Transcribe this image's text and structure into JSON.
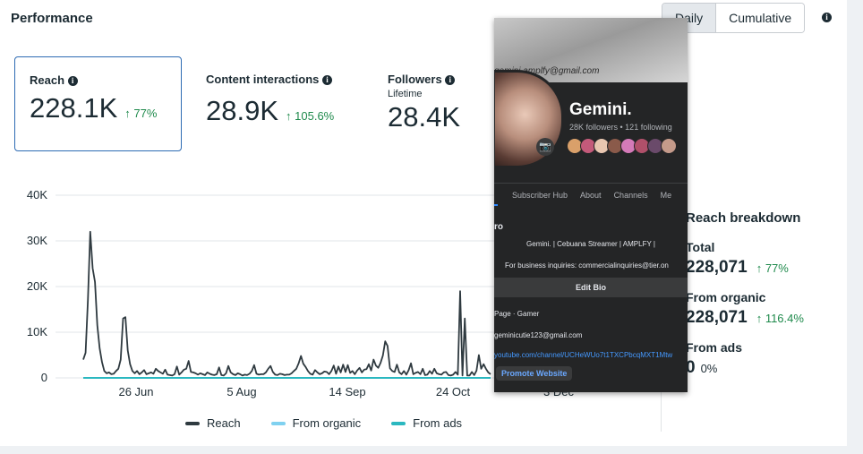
{
  "header": {
    "title": "Performance",
    "toggle": {
      "daily": "Daily",
      "cumulative": "Cumulative"
    }
  },
  "metrics": {
    "reach": {
      "label": "Reach",
      "value": "228.1K",
      "change": "77%"
    },
    "content_interactions": {
      "label": "Content interactions",
      "value": "28.9K",
      "change": "105.6%"
    },
    "followers": {
      "label": "Followers",
      "sublabel": "Lifetime",
      "value": "28.4K"
    }
  },
  "colors": {
    "accent": "#2d6bb3",
    "positive": "#1f8a4c",
    "reach": "#2f3a40",
    "organic": "#7fd1f0",
    "ads": "#2bb8c0"
  },
  "chart_data": {
    "type": "line",
    "title": "",
    "xlabel": "",
    "ylabel": "",
    "x_tick_labels": [
      "26 Jun",
      "5 Aug",
      "14 Sep",
      "24 Oct",
      "3 Dec"
    ],
    "y_tick_labels": [
      "40K",
      "30K",
      "20K",
      "10K",
      "0"
    ],
    "ylim": [
      0,
      40000
    ],
    "grid": true,
    "legend_position": "bottom",
    "series": [
      {
        "name": "Reach",
        "values": [
          4000,
          5500,
          17000,
          32000,
          24000,
          21000,
          11500,
          6500,
          3500,
          1500,
          1000,
          1200,
          800,
          900,
          1500,
          2000,
          4000,
          13000,
          13300,
          6000,
          3000,
          1500,
          1000,
          1500,
          800,
          1200,
          1700,
          800,
          1000,
          1200,
          900,
          2000,
          1500,
          1200,
          900,
          1800,
          700,
          600,
          500,
          800,
          2500,
          700,
          1200,
          1800,
          2000,
          3700,
          1300,
          1200,
          1000,
          700,
          1000,
          800,
          600,
          1200,
          900,
          700,
          600,
          800,
          2300,
          600,
          500,
          1000,
          2600,
          1200,
          800,
          600,
          1000,
          800,
          500,
          700,
          600,
          900,
          1500,
          2800,
          900,
          700,
          800,
          800,
          1200,
          2000,
          2600,
          1300,
          700,
          600,
          900,
          800,
          600,
          700,
          700,
          1000,
          1500,
          2000,
          3200,
          4800,
          3100,
          2400,
          1500,
          900,
          700,
          1700,
          1200,
          800,
          1000,
          1400,
          1300,
          800,
          1500,
          2700,
          900,
          2500,
          1200,
          2900,
          1300,
          2800,
          1100,
          1500,
          800,
          1600,
          2200,
          1200,
          1800,
          1900,
          3000,
          1600,
          4000,
          2700,
          2200,
          3300,
          4900,
          8000,
          7000,
          2100,
          1500,
          1300,
          2900,
          1200,
          800,
          1500,
          700,
          1700,
          3200,
          800,
          1100,
          1300,
          800,
          2000,
          600,
          700,
          1500,
          900,
          2000,
          1000,
          800,
          700,
          1200,
          1300,
          600,
          500,
          700,
          1300,
          700,
          19000,
          500,
          13000,
          500,
          500,
          1300,
          600,
          1600,
          5000,
          2000,
          3000,
          2000,
          1200,
          800
        ]
      },
      {
        "name": "From organic",
        "values": [
          0
        ]
      },
      {
        "name": "From ads",
        "values": [
          0
        ]
      }
    ]
  },
  "breakdown": {
    "title": "Reach breakdown",
    "total": {
      "label": "Total",
      "value": "228,071",
      "change": "77%"
    },
    "organic": {
      "label": "From organic",
      "value": "228,071",
      "change": "116.4%"
    },
    "ads": {
      "label": "From ads",
      "value": "0",
      "change": "0%"
    }
  },
  "profile": {
    "cover_email": "gemini.amplfy@gmail.com",
    "name": "Gemini.",
    "stats": "28K followers • 121 following",
    "tabs": [
      "Subscriber Hub",
      "About",
      "Channels",
      "Me"
    ],
    "intro_heading": "ro",
    "bio_line1": "Gemini. | Cebuana Streamer | AMPLFY |",
    "bio_line2": "For business inquiries: commercialinquiries@tier.on",
    "edit_bio": "Edit Bio",
    "category": "Page · Gamer",
    "email": "geminicutie123@gmail.com",
    "youtube": "youtube.com/channel/UCHeWUo7t1TXCPbcqMXT1Mtw",
    "promote": "Promote Website"
  }
}
